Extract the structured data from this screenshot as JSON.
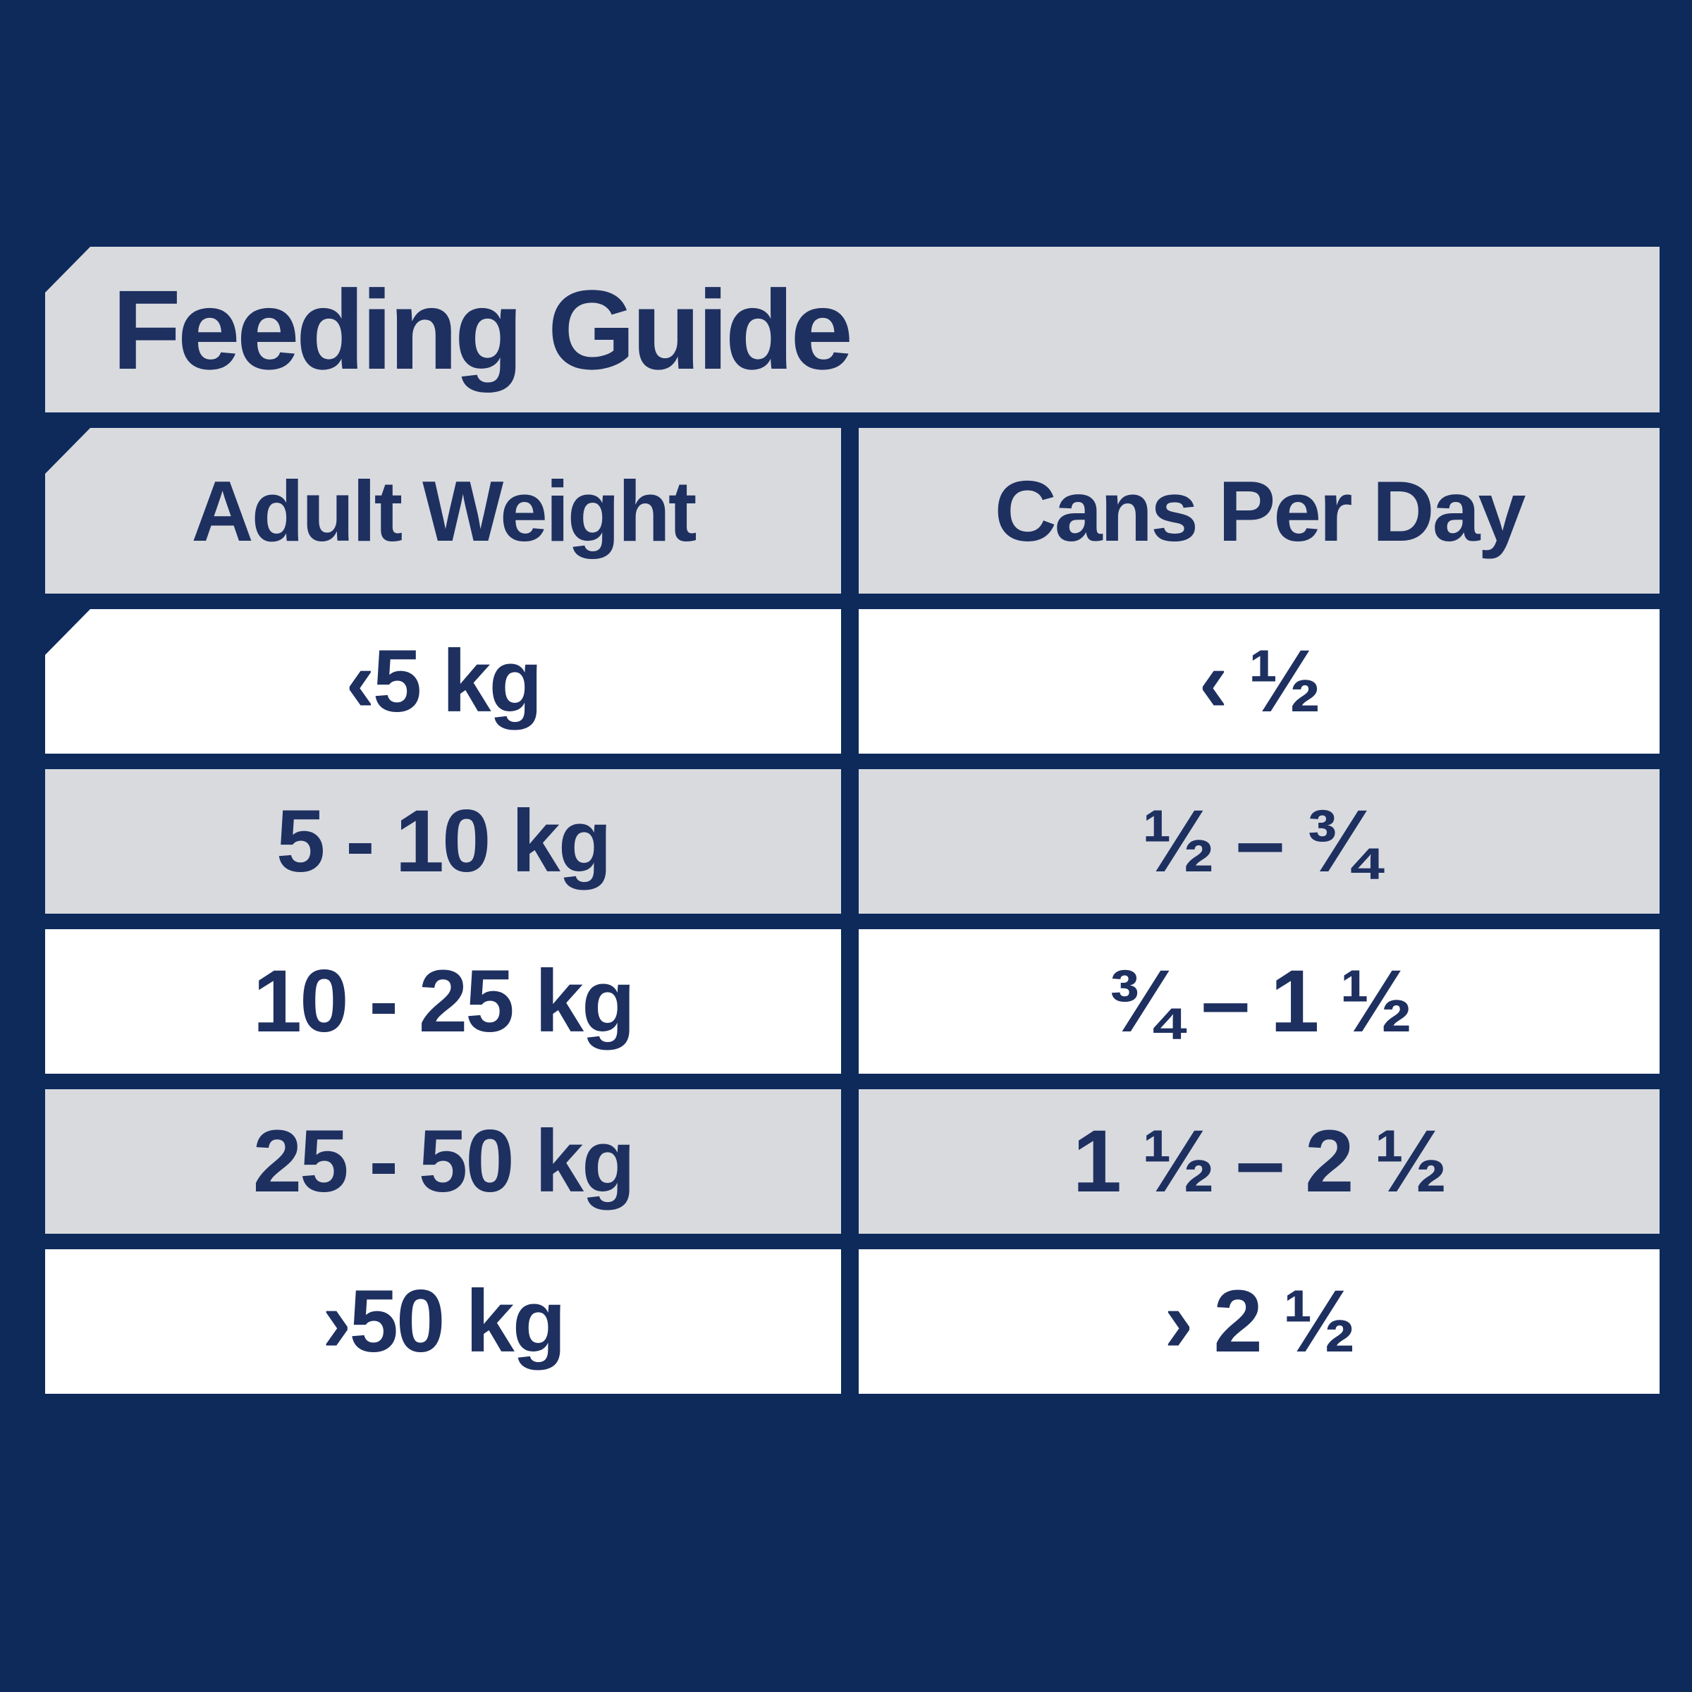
{
  "theme": {
    "background_navy": "#0d2a5b",
    "band_gray": "#d8dade",
    "band_white": "#ffffff",
    "text_navy": "#1e3060"
  },
  "chart_data": {
    "type": "table",
    "title": "Feeding Guide",
    "columns": [
      "Adult Weight",
      "Cans Per Day"
    ],
    "rows": [
      [
        "‹5 kg",
        "‹ ½"
      ],
      [
        "5 - 10 kg",
        "½ – ¾"
      ],
      [
        "10 - 25 kg",
        "¾ – 1 ½"
      ],
      [
        "25 - 50 kg",
        "1 ½ – 2 ½"
      ],
      [
        "›50 kg",
        "› 2 ½"
      ]
    ]
  }
}
